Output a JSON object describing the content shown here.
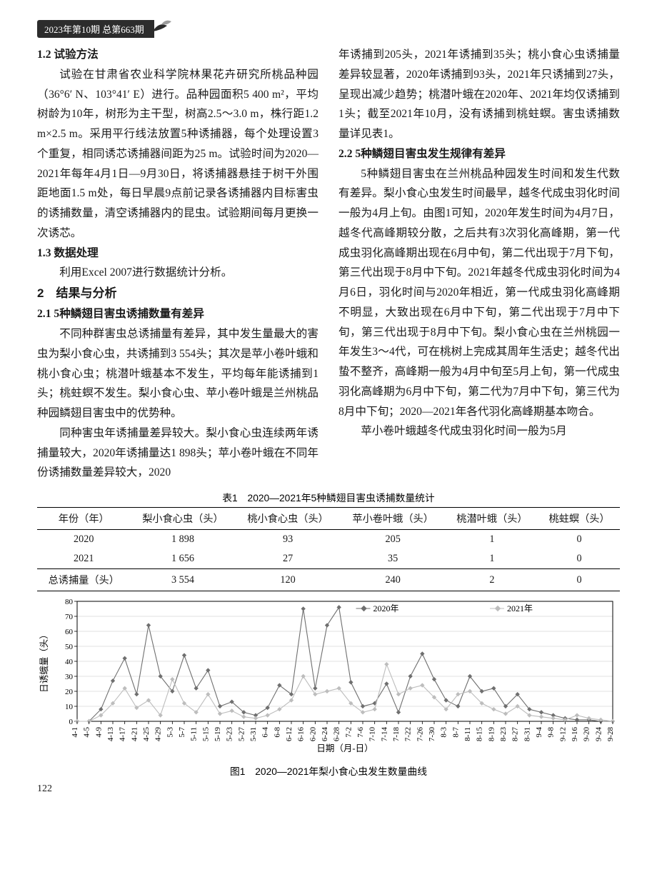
{
  "issue_label": "2023年第10期    总第663期",
  "page_number": "122",
  "text": {
    "h_1_2": "1.2 试验方法",
    "p1": "试验在甘肃省农业科学院林果花卉研究所桃品种园（36°6′ N、103°41′ E）进行。品种园面积5 400 m²，平均树龄为10年，树形为主干型，树高2.5～3.0 m，株行距1.2 m×2.5 m。采用平行线法放置5种诱捕器，每个处理设置3个重复，相同诱芯诱捕器间距为25 m。试验时间为2020—2021年每年4月1日—9月30日，将诱捕器悬挂于树干外围距地面1.5 m处，每日早晨9点前记录各诱捕器内目标害虫的诱捕数量，清空诱捕器内的昆虫。试验期间每月更换一次诱芯。",
    "h_1_3": "1.3 数据处理",
    "p2": "利用Excel 2007进行数据统计分析。",
    "h_2": "2　结果与分析",
    "h_2_1": "2.1 5种鳞翅目害虫诱捕数量有差异",
    "p3": "不同种群害虫总诱捕量有差异，其中发生量最大的害虫为梨小食心虫，共诱捕到3 554头；其次是苹小卷叶蛾和桃小食心虫；桃潜叶蛾基本不发生，平均每年能诱捕到1头；桃蛀螟不发生。梨小食心虫、苹小卷叶蛾是兰州桃品种园鳞翅目害虫中的优势种。",
    "p4": "同种害虫年诱捕量差异较大。梨小食心虫连续两年诱捕量较大，2020年诱捕量达1 898头；苹小卷叶蛾在不同年份诱捕数量差异较大，2020",
    "p5": "年诱捕到205头，2021年诱捕到35头；桃小食心虫诱捕量差异较显著，2020年诱捕到93头，2021年只诱捕到27头，呈现出减少趋势；桃潜叶蛾在2020年、2021年均仅诱捕到1头；截至2021年10月，没有诱捕到桃蛀螟。害虫诱捕数量详见表1。",
    "h_2_2": "2.2 5种鳞翅目害虫发生规律有差异",
    "p6": "5种鳞翅目害虫在兰州桃品种园发生时间和发生代数有差异。梨小食心虫发生时间最早，越冬代成虫羽化时间一般为4月上旬。由图1可知，2020年发生时间为4月7日，越冬代高峰期较分散，之后共有3次羽化高峰期，第一代成虫羽化高峰期出现在6月中旬，第二代出现于7月下旬，第三代出现于8月中下旬。2021年越冬代成虫羽化时间为4月6日，羽化时间与2020年相近，第一代成虫羽化高峰期不明显，大致出现在6月中下旬，第二代出现于7月中下旬，第三代出现于8月中下旬。梨小食心虫在兰州桃园一年发生3～4代，可在桃树上完成其周年生活史；越冬代出蛰不整齐，高峰期一般为4月中旬至5月上旬，第一代成虫羽化高峰期为6月中下旬，第二代为7月中下旬，第三代为8月中下旬；2020—2021年各代羽化高峰期基本吻合。",
    "p7": "苹小卷叶蛾越冬代成虫羽化时间一般为5月"
  },
  "table1": {
    "title": "表1　2020—2021年5种鳞翅目害虫诱捕数量统计",
    "columns": [
      "年份（年）",
      "梨小食心虫（头）",
      "桃小食心虫（头）",
      "苹小卷叶蛾（头）",
      "桃潜叶蛾（头）",
      "桃蛀螟（头）"
    ],
    "rows": [
      [
        "2020",
        "1 898",
        "93",
        "205",
        "1",
        "0"
      ],
      [
        "2021",
        "1 656",
        "27",
        "35",
        "1",
        "0"
      ],
      [
        "总诱捕量（头）",
        "3 554",
        "120",
        "240",
        "2",
        "0"
      ]
    ]
  },
  "figure1": {
    "title": "图1　2020—2021年梨小食心虫发生数量曲线",
    "type": "line",
    "ylabel": "日诱蛾量（头）",
    "xlabel": "日期（月-日）",
    "ylim": [
      0,
      80
    ],
    "ytick_step": 10,
    "background_color": "#ffffff",
    "grid_color": "#d8d8d8",
    "border_color": "#000000",
    "series": [
      {
        "name": "2020年",
        "color": "#6f6f6f",
        "marker": "diamond",
        "line_width": 1.1,
        "marker_size": 3.2
      },
      {
        "name": "2021年",
        "color": "#bdbdbd",
        "marker": "diamond",
        "line_width": 1.1,
        "marker_size": 3.2
      }
    ],
    "x_categories": [
      "4-1",
      "4-5",
      "4-9",
      "4-13",
      "4-17",
      "4-21",
      "4-25",
      "4-29",
      "5-3",
      "5-7",
      "5-11",
      "5-15",
      "5-19",
      "5-23",
      "5-27",
      "5-31",
      "6-4",
      "6-8",
      "6-12",
      "6-16",
      "6-20",
      "6-24",
      "6-28",
      "7-2",
      "7-6",
      "7-10",
      "7-14",
      "7-18",
      "7-22",
      "7-26",
      "7-30",
      "8-3",
      "8-7",
      "8-11",
      "8-15",
      "8-19",
      "8-23",
      "8-27",
      "8-31",
      "9-4",
      "9-8",
      "9-12",
      "9-16",
      "9-20",
      "9-24",
      "9-28"
    ],
    "values_2020": [
      0,
      0,
      8,
      27,
      42,
      18,
      64,
      30,
      20,
      44,
      22,
      34,
      10,
      13,
      6,
      4,
      9,
      24,
      18,
      75,
      22,
      64,
      76,
      26,
      10,
      12,
      25,
      6,
      30,
      45,
      28,
      14,
      10,
      30,
      20,
      22,
      10,
      18,
      8,
      6,
      4,
      2,
      1,
      1,
      0,
      0
    ],
    "values_2021": [
      0,
      0,
      4,
      12,
      22,
      9,
      14,
      4,
      28,
      12,
      6,
      18,
      5,
      7,
      3,
      2,
      4,
      8,
      14,
      30,
      18,
      20,
      22,
      12,
      6,
      8,
      38,
      18,
      22,
      24,
      16,
      8,
      18,
      20,
      12,
      8,
      5,
      10,
      4,
      3,
      2,
      1,
      4,
      2,
      1,
      0
    ]
  }
}
